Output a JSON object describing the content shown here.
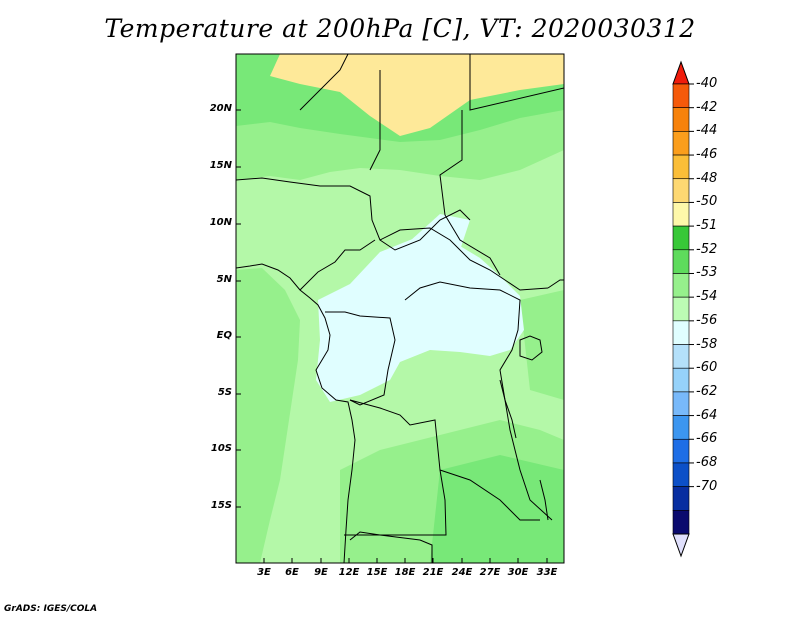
{
  "title": "Temperature at 200hPa [C], VT: 2020030312",
  "credit": "GrADS: IGES/COLA",
  "map": {
    "lat_labels": [
      "20N",
      "15N",
      "10N",
      "5N",
      "EQ",
      "5S",
      "10S",
      "15S"
    ],
    "lon_labels": [
      "3E",
      "6E",
      "9E",
      "12E",
      "15E",
      "18E",
      "21E",
      "24E",
      "27E",
      "30E",
      "33E"
    ],
    "fill_colors": {
      "lt_-50": "#fee999",
      "-51_-52": "#78e878",
      "-52_-53": "#96f08c",
      "-53_-54": "#b4f8a8",
      "-54_-56": "#e0feff",
      "border": "#000000"
    }
  },
  "colorbar": {
    "labels": [
      "-40",
      "-42",
      "-44",
      "-46",
      "-48",
      "-50",
      "-51",
      "-52",
      "-53",
      "-54",
      "-56",
      "-58",
      "-60",
      "-62",
      "-64",
      "-66",
      "-68",
      "-70"
    ],
    "colors": [
      "#f01c0c",
      "#f55a0a",
      "#f7820b",
      "#fb9e1c",
      "#fbbe38",
      "#fdd872",
      "#fef8aa",
      "#38c838",
      "#5edb5c",
      "#96f08c",
      "#bcfcb4",
      "#e0feff",
      "#b4e0fa",
      "#96d2fa",
      "#78b9fa",
      "#3c96f0",
      "#1e6ee6",
      "#0c50c8",
      "#082ea0",
      "#0a0a6e",
      "#e0e0fc"
    ]
  }
}
